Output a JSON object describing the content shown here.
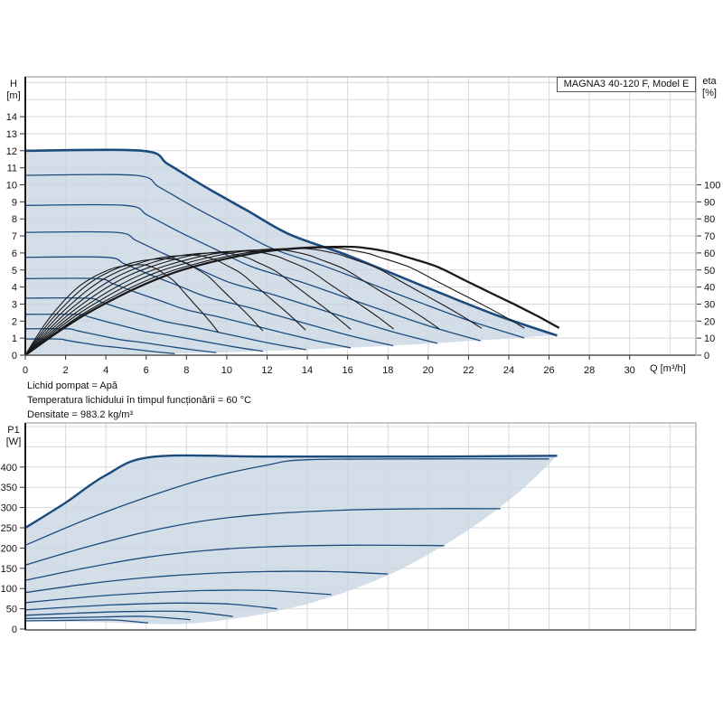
{
  "header": {
    "model_label": "MAGNA3 40-120 F, Model E"
  },
  "top_chart": {
    "y_axis": {
      "title_line1": "H",
      "title_line2": "[m]",
      "ticks": [
        0,
        1,
        2,
        3,
        4,
        5,
        6,
        7,
        8,
        9,
        10,
        11,
        12,
        13,
        14
      ]
    },
    "right_axis": {
      "title_line1": "eta",
      "title_line2": "[%]",
      "ticks": [
        0,
        10,
        20,
        30,
        40,
        50,
        60,
        70,
        80,
        90,
        100
      ]
    },
    "x_axis": {
      "ticks": [
        0,
        2,
        4,
        6,
        8,
        10,
        12,
        14,
        16,
        18,
        20,
        22,
        24,
        26,
        28,
        30
      ],
      "unit_label": "Q [m³/h]"
    }
  },
  "bottom_chart": {
    "y_axis": {
      "title_line1": "P1",
      "title_line2": "[W]",
      "ticks": [
        0,
        50,
        100,
        150,
        200,
        250,
        300,
        350,
        400
      ]
    }
  },
  "notes": {
    "line1": "Lichid pompat = Apă",
    "line2": "Temperatura lichidului în timpul funcționării = 60 °C",
    "line3": "Densitate = 983.2 kg/m³"
  },
  "colors": {
    "curve_blue": "#1c4b7d",
    "efficiency_black": "#1a1a1a",
    "fill_blue": "#c9d6e4",
    "grid": "#d9d9d9",
    "border": "#909090",
    "axis_dark": "#1a1a1a",
    "text": "#111111"
  },
  "chart_data": [
    {
      "type": "line",
      "title": "MAGNA3 40-120 F, Model E",
      "xlabel": "Q [m³/h]",
      "ylabel": "H [m]",
      "y2label": "eta [%]",
      "xlim": [
        0,
        33.3
      ],
      "ylim": [
        0,
        16.3
      ],
      "y2lim": [
        0,
        100
      ],
      "grid": true,
      "q_max_full_speed": 26.5,
      "pump_curves": {
        "comment": "max-speed curve points; lower speed curves scaled by affinity: Q*f, H*f^2",
        "base_points": [
          [
            0,
            12
          ],
          [
            5.8,
            12
          ],
          [
            7.1,
            11.2
          ],
          [
            8.9,
            9.9
          ],
          [
            11,
            8.5
          ],
          [
            13.1,
            7.1
          ],
          [
            15.8,
            5.95
          ],
          [
            18,
            4.9
          ],
          [
            20.7,
            3.6
          ],
          [
            23.5,
            2.3
          ],
          [
            26.4,
            1.15
          ]
        ],
        "speed_fractions": [
          1.0,
          0.938,
          0.856,
          0.775,
          0.692,
          0.612,
          0.528,
          0.447,
          0.359,
          0.281
        ]
      },
      "envelope_lower": [
        [
          26.4,
          1.19
        ],
        [
          24,
          0.98
        ],
        [
          22,
          0.83
        ],
        [
          20,
          0.68
        ],
        [
          18,
          0.55
        ],
        [
          16,
          0.44
        ],
        [
          14,
          0.33
        ],
        [
          12,
          0.25
        ],
        [
          10,
          0.17
        ],
        [
          8,
          0.11
        ],
        [
          6,
          0.06
        ],
        [
          4,
          0.03
        ],
        [
          2,
          0.01
        ],
        [
          0,
          0
        ]
      ],
      "efficiency_curves": {
        "base_shape": [
          [
            0,
            0
          ],
          [
            0.057,
            0.2
          ],
          [
            0.113,
            0.378
          ],
          [
            0.17,
            0.53
          ],
          [
            0.226,
            0.661
          ],
          [
            0.283,
            0.77
          ],
          [
            0.34,
            0.85
          ],
          [
            0.396,
            0.912
          ],
          [
            0.453,
            0.961
          ],
          [
            0.51,
            0.988
          ],
          [
            0.566,
            1.0
          ],
          [
            0.623,
            0.998
          ],
          [
            0.68,
            0.955
          ],
          [
            0.71,
            0.913
          ],
          [
            0.77,
            0.82
          ],
          [
            0.823,
            0.693
          ],
          [
            0.87,
            0.58
          ],
          [
            0.916,
            0.47
          ],
          [
            0.96,
            0.36
          ],
          [
            1,
            0.252
          ]
        ],
        "variants": [
          {
            "f": 1.0,
            "peak": 63.5,
            "thick": true
          },
          {
            "f": 0.935,
            "peak": 63.0,
            "thick": false
          },
          {
            "f": 0.855,
            "peak": 62.5,
            "thick": false
          },
          {
            "f": 0.775,
            "peak": 61.8,
            "thick": false
          },
          {
            "f": 0.69,
            "peak": 61.0,
            "thick": false
          },
          {
            "f": 0.61,
            "peak": 60.0,
            "thick": false
          },
          {
            "f": 0.525,
            "peak": 58.5,
            "thick": false
          },
          {
            "f": 0.445,
            "peak": 56.5,
            "thick": false
          },
          {
            "f": 0.362,
            "peak": 53.0,
            "thick": false
          }
        ]
      }
    },
    {
      "type": "line",
      "ylabel": "P1 [W]",
      "xlim": [
        0,
        33.3
      ],
      "ylim": [
        0,
        509
      ],
      "grid": true,
      "power_curves": [
        [
          [
            0,
            250
          ],
          [
            2,
            312
          ],
          [
            4,
            380
          ],
          [
            6.3,
            425
          ],
          [
            12,
            426
          ],
          [
            20,
            426
          ],
          [
            26.4,
            428
          ]
        ],
        [
          [
            0,
            207
          ],
          [
            3,
            270
          ],
          [
            6,
            325
          ],
          [
            9,
            372
          ],
          [
            12,
            405
          ],
          [
            14,
            418
          ],
          [
            20,
            420
          ],
          [
            26.0,
            420
          ]
        ],
        [
          [
            0,
            158
          ],
          [
            3,
            202
          ],
          [
            6,
            240
          ],
          [
            9,
            268
          ],
          [
            12,
            284
          ],
          [
            16,
            294
          ],
          [
            20,
            297
          ],
          [
            23.6,
            297
          ]
        ],
        [
          [
            0,
            120
          ],
          [
            3,
            151
          ],
          [
            6,
            177
          ],
          [
            9,
            194
          ],
          [
            12,
            203
          ],
          [
            16,
            207
          ],
          [
            20.8,
            206
          ]
        ],
        [
          [
            0,
            90
          ],
          [
            3,
            111
          ],
          [
            6,
            127
          ],
          [
            9,
            137
          ],
          [
            12,
            142
          ],
          [
            15,
            142
          ],
          [
            18,
            136
          ]
        ],
        [
          [
            0,
            65
          ],
          [
            3,
            79
          ],
          [
            6,
            89
          ],
          [
            9,
            95
          ],
          [
            12,
            95
          ],
          [
            15.2,
            85
          ]
        ],
        [
          [
            0,
            47
          ],
          [
            2.5,
            55
          ],
          [
            5,
            61
          ],
          [
            7.5,
            64
          ],
          [
            10,
            62
          ],
          [
            12.5,
            50
          ]
        ],
        [
          [
            0,
            34
          ],
          [
            2.5,
            39
          ],
          [
            5,
            43
          ],
          [
            8,
            43
          ],
          [
            10.3,
            31
          ]
        ],
        [
          [
            0,
            26
          ],
          [
            2,
            28
          ],
          [
            4,
            30
          ],
          [
            6,
            31
          ],
          [
            8.2,
            23
          ]
        ],
        [
          [
            0,
            20
          ],
          [
            1.5,
            21
          ],
          [
            3,
            22
          ],
          [
            4.5,
            22
          ],
          [
            6.1,
            15
          ]
        ]
      ],
      "envelope_lower": [
        [
          26.4,
          428
        ],
        [
          25,
          360
        ],
        [
          24,
          318
        ],
        [
          23,
          280
        ],
        [
          22,
          245
        ],
        [
          21,
          213
        ],
        [
          20,
          184
        ],
        [
          19,
          157
        ],
        [
          18,
          133
        ],
        [
          17,
          112
        ],
        [
          16,
          93
        ],
        [
          15,
          77
        ],
        [
          14,
          62
        ],
        [
          13,
          50
        ],
        [
          12,
          39
        ],
        [
          11,
          30
        ],
        [
          10,
          23
        ],
        [
          9,
          17
        ],
        [
          8,
          13
        ],
        [
          7,
          12
        ],
        [
          6.1,
          13
        ],
        [
          4,
          16
        ],
        [
          2,
          18
        ],
        [
          0,
          19
        ]
      ]
    }
  ]
}
